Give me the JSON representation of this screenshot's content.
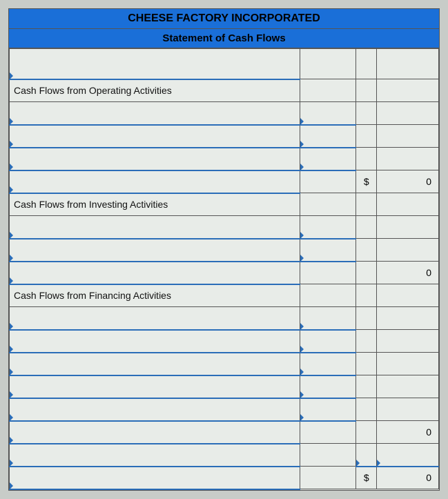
{
  "header": {
    "company": "CHEESE FACTORY INCORPORATED",
    "title": "Statement of Cash Flows"
  },
  "sections": {
    "operating_label": "Cash Flows from Operating Activities",
    "investing_label": "Cash Flows from Investing Activities",
    "financing_label": "Cash Flows from Financing Activities"
  },
  "values": {
    "operating_total_symbol": "$",
    "operating_total": "0",
    "investing_total": "0",
    "financing_sub": "0",
    "grand_symbol": "$",
    "grand_total": "0"
  },
  "style": {
    "header_bg": "#1a6fd8",
    "dropdown_border": "#2a6db8",
    "page_bg": "#c8ccc8",
    "cell_bg": "#e8ece8"
  }
}
